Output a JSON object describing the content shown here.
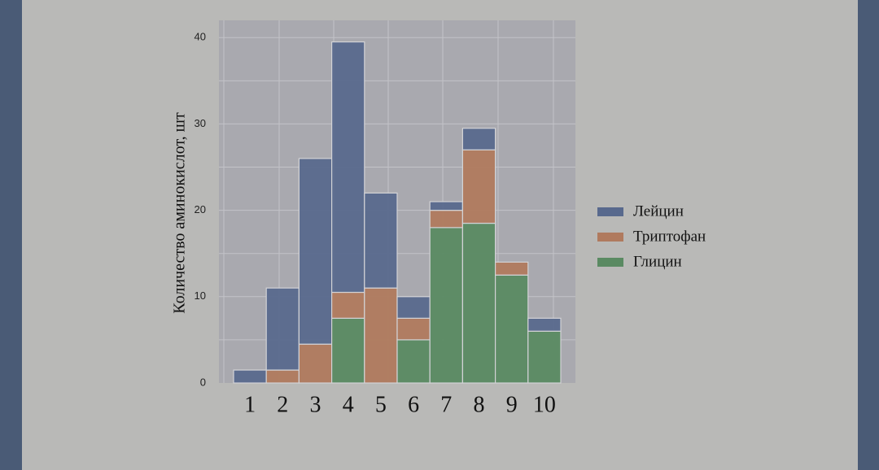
{
  "colors": {
    "page_border": "#4a5b76",
    "panel_background": "#b9b9b7",
    "plot_background": "#a9a9af",
    "grid": "#c3c3c8",
    "bar_edge": "#d3d3d6"
  },
  "chart_data": {
    "type": "bar",
    "stacked": true,
    "bin_width": 1,
    "categories": [
      "1",
      "2",
      "3",
      "4",
      "5",
      "6",
      "7",
      "8",
      "9",
      "10"
    ],
    "ylabel": "Количество аминокислот, шт",
    "ylim": [
      0,
      42
    ],
    "yticks": [
      0,
      10,
      20,
      30,
      40
    ],
    "grid": true,
    "legend_position": "right",
    "series": [
      {
        "name": "Глицин",
        "color": "#5a8a62",
        "values": [
          0,
          0,
          0,
          7.5,
          0,
          5,
          18,
          18.5,
          12.5,
          6
        ]
      },
      {
        "name": "Триптофан",
        "color": "#b07a5e",
        "values": [
          0,
          1.5,
          4.5,
          3,
          11,
          2.5,
          2,
          8.5,
          1.5,
          0
        ]
      },
      {
        "name": "Лейцин",
        "color": "#58698d",
        "values": [
          1.5,
          9.5,
          21.5,
          29,
          11,
          2.5,
          1,
          2.5,
          0,
          1.5
        ]
      }
    ],
    "legend_order": [
      "Лейцин",
      "Триптофан",
      "Глицин"
    ]
  }
}
